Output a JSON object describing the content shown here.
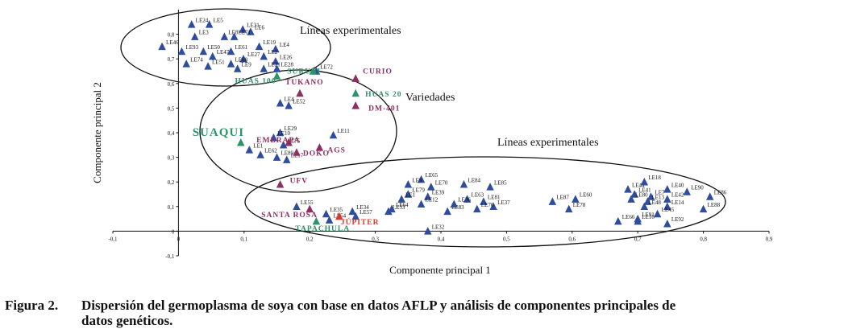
{
  "figure": {
    "caption_label": "Figura 2.",
    "caption_line1": "Dispersión del germoplasma de soya con base en datos AFLP y análisis de componentes principales de",
    "caption_line2": "datos genéticos."
  },
  "chart_data": {
    "type": "scatter",
    "xlabel": "Componente principal 1",
    "ylabel": "Componente principal 2",
    "xlim": [
      -0.1,
      0.9
    ],
    "ylim": [
      -0.1,
      0.9
    ],
    "xticks": [
      "-0,1",
      "0",
      "0,1",
      "0,2",
      "0,3",
      "0,4",
      "0,5",
      "0,6",
      "0,7",
      "0,8",
      "0,9"
    ],
    "yticks": [
      "-0,1",
      "0",
      "0,1",
      "0,2",
      "0,3",
      "0,4",
      "0,5",
      "0,6",
      "0,7",
      "0,8"
    ],
    "group_annotations": [
      "Líneas experimentales",
      "Variedades",
      "Líneas experimentales"
    ],
    "series": [
      {
        "name": "Líneas experimentales",
        "color": "#2e4d9e",
        "points": [
          {
            "label": "LE24",
            "x": 0.02,
            "y": 0.84
          },
          {
            "label": "LE5",
            "x": 0.047,
            "y": 0.84
          },
          {
            "label": "LE31",
            "x": 0.098,
            "y": 0.82
          },
          {
            "label": "LE6",
            "x": 0.11,
            "y": 0.81
          },
          {
            "label": "LE3",
            "x": 0.025,
            "y": 0.79
          },
          {
            "label": "LE8",
            "x": 0.07,
            "y": 0.79
          },
          {
            "label": "LE71",
            "x": 0.085,
            "y": 0.79
          },
          {
            "label": "LE46",
            "x": -0.025,
            "y": 0.75
          },
          {
            "label": "LE93",
            "x": 0.005,
            "y": 0.73
          },
          {
            "label": "LE50",
            "x": 0.038,
            "y": 0.73
          },
          {
            "label": "LE61",
            "x": 0.08,
            "y": 0.73
          },
          {
            "label": "LE19",
            "x": 0.123,
            "y": 0.75
          },
          {
            "label": "LE4",
            "x": 0.148,
            "y": 0.74
          },
          {
            "label": "LE47",
            "x": 0.052,
            "y": 0.71
          },
          {
            "label": "LE27",
            "x": 0.099,
            "y": 0.7
          },
          {
            "label": "LE2",
            "x": 0.13,
            "y": 0.71
          },
          {
            "label": "LE26",
            "x": 0.148,
            "y": 0.69
          },
          {
            "label": "LE74",
            "x": 0.012,
            "y": 0.68
          },
          {
            "label": "LE51",
            "x": 0.045,
            "y": 0.67
          },
          {
            "label": "LE9",
            "x": 0.09,
            "y": 0.66
          },
          {
            "label": "LE68",
            "x": 0.08,
            "y": 0.68
          },
          {
            "label": "LE21",
            "x": 0.13,
            "y": 0.66
          },
          {
            "label": "LE28",
            "x": 0.15,
            "y": 0.66
          },
          {
            "label": "LE72",
            "x": 0.21,
            "y": 0.65
          },
          {
            "label": "LE4",
            "x": 0.155,
            "y": 0.52
          },
          {
            "label": "LE52",
            "x": 0.168,
            "y": 0.51
          },
          {
            "label": "LE29",
            "x": 0.155,
            "y": 0.4
          },
          {
            "label": "LE10",
            "x": 0.145,
            "y": 0.38
          },
          {
            "label": "LE11",
            "x": 0.236,
            "y": 0.39
          },
          {
            "label": "LE75",
            "x": 0.16,
            "y": 0.35
          },
          {
            "label": "LE1",
            "x": 0.108,
            "y": 0.33
          },
          {
            "label": "LE62",
            "x": 0.125,
            "y": 0.31
          },
          {
            "label": "LE89",
            "x": 0.15,
            "y": 0.3
          },
          {
            "label": "LE17",
            "x": 0.165,
            "y": 0.29
          },
          {
            "label": "LE55",
            "x": 0.18,
            "y": 0.1
          },
          {
            "label": "LE35",
            "x": 0.225,
            "y": 0.07
          },
          {
            "label": "LE34",
            "x": 0.265,
            "y": 0.08
          },
          {
            "label": "LE54",
            "x": 0.23,
            "y": 0.045
          },
          {
            "label": "LE57",
            "x": 0.27,
            "y": 0.06
          },
          {
            "label": "LE33",
            "x": 0.32,
            "y": 0.08
          },
          {
            "label": "LE64",
            "x": 0.325,
            "y": 0.09
          },
          {
            "label": "LE65",
            "x": 0.37,
            "y": 0.21
          },
          {
            "label": "LE9",
            "x": 0.35,
            "y": 0.19
          },
          {
            "label": "LE70",
            "x": 0.385,
            "y": 0.18
          },
          {
            "label": "LE84",
            "x": 0.435,
            "y": 0.19
          },
          {
            "label": "LE85",
            "x": 0.475,
            "y": 0.18
          },
          {
            "label": "LE79",
            "x": 0.35,
            "y": 0.15
          },
          {
            "label": "LE1",
            "x": 0.34,
            "y": 0.13
          },
          {
            "label": "LE39",
            "x": 0.38,
            "y": 0.14
          },
          {
            "label": "LE12",
            "x": 0.37,
            "y": 0.11
          },
          {
            "label": "LE83",
            "x": 0.41,
            "y": 0.08
          },
          {
            "label": "LE63",
            "x": 0.44,
            "y": 0.13
          },
          {
            "label": "LE81",
            "x": 0.465,
            "y": 0.12
          },
          {
            "label": "LE36",
            "x": 0.42,
            "y": 0.11
          },
          {
            "label": "LE37",
            "x": 0.48,
            "y": 0.1
          },
          {
            "label": "LE76",
            "x": 0.455,
            "y": 0.09
          },
          {
            "label": "LE32",
            "x": 0.38,
            "y": 0.0
          },
          {
            "label": "LE87",
            "x": 0.57,
            "y": 0.12
          },
          {
            "label": "LE60",
            "x": 0.605,
            "y": 0.13
          },
          {
            "label": "LE78",
            "x": 0.595,
            "y": 0.09
          },
          {
            "label": "LE44",
            "x": 0.685,
            "y": 0.17
          },
          {
            "label": "LE18",
            "x": 0.71,
            "y": 0.2
          },
          {
            "label": "LE40",
            "x": 0.745,
            "y": 0.17
          },
          {
            "label": "LE90",
            "x": 0.775,
            "y": 0.16
          },
          {
            "label": "LE86",
            "x": 0.81,
            "y": 0.14
          },
          {
            "label": "LE41",
            "x": 0.695,
            "y": 0.15
          },
          {
            "label": "LE80",
            "x": 0.69,
            "y": 0.13
          },
          {
            "label": "LE7",
            "x": 0.72,
            "y": 0.14
          },
          {
            "label": "LE42",
            "x": 0.745,
            "y": 0.13
          },
          {
            "label": "LE13",
            "x": 0.715,
            "y": 0.12
          },
          {
            "label": "LE48",
            "x": 0.71,
            "y": 0.1
          },
          {
            "label": "LE14",
            "x": 0.745,
            "y": 0.1
          },
          {
            "label": "LE88",
            "x": 0.8,
            "y": 0.09
          },
          {
            "label": "LE91",
            "x": 0.7,
            "y": 0.05
          },
          {
            "label": "LE45",
            "x": 0.73,
            "y": 0.07
          },
          {
            "label": "LE16",
            "x": 0.7,
            "y": 0.04
          },
          {
            "label": "LE66",
            "x": 0.67,
            "y": 0.04
          },
          {
            "label": "LE92",
            "x": 0.745,
            "y": 0.03
          }
        ]
      },
      {
        "name": "Variedades (magenta)",
        "color": "#8e2f63",
        "points": [
          {
            "label": "CURIO",
            "x": 0.27,
            "y": 0.62
          },
          {
            "label": "TUKANO",
            "x": 0.185,
            "y": 0.56
          },
          {
            "label": "DM-401",
            "x": 0.27,
            "y": 0.51
          },
          {
            "label": "EMBRAPA",
            "x": 0.168,
            "y": 0.36
          },
          {
            "label": "DOKO",
            "x": 0.18,
            "y": 0.32
          },
          {
            "label": "AGS",
            "x": 0.215,
            "y": 0.34
          },
          {
            "label": "UFV",
            "x": 0.155,
            "y": 0.19
          },
          {
            "label": "SANTA ROSA",
            "x": 0.2,
            "y": 0.09
          }
        ]
      },
      {
        "name": "Variedades (verde)",
        "color": "#2b9468",
        "points": [
          {
            "label": "SURUBI",
            "x": 0.205,
            "y": 0.65
          },
          {
            "label": "HUAS 100",
            "x": 0.15,
            "y": 0.63
          },
          {
            "label": "HUAS 20",
            "x": 0.27,
            "y": 0.56
          },
          {
            "label": "SUAQUI",
            "x": 0.095,
            "y": 0.36
          },
          {
            "label": "TAPACHULA",
            "x": 0.21,
            "y": 0.04
          }
        ]
      },
      {
        "name": "Variedad (rojo)",
        "color": "#d93a2b",
        "points": [
          {
            "label": "JÚPITER",
            "x": 0.245,
            "y": 0.06
          }
        ]
      }
    ]
  }
}
